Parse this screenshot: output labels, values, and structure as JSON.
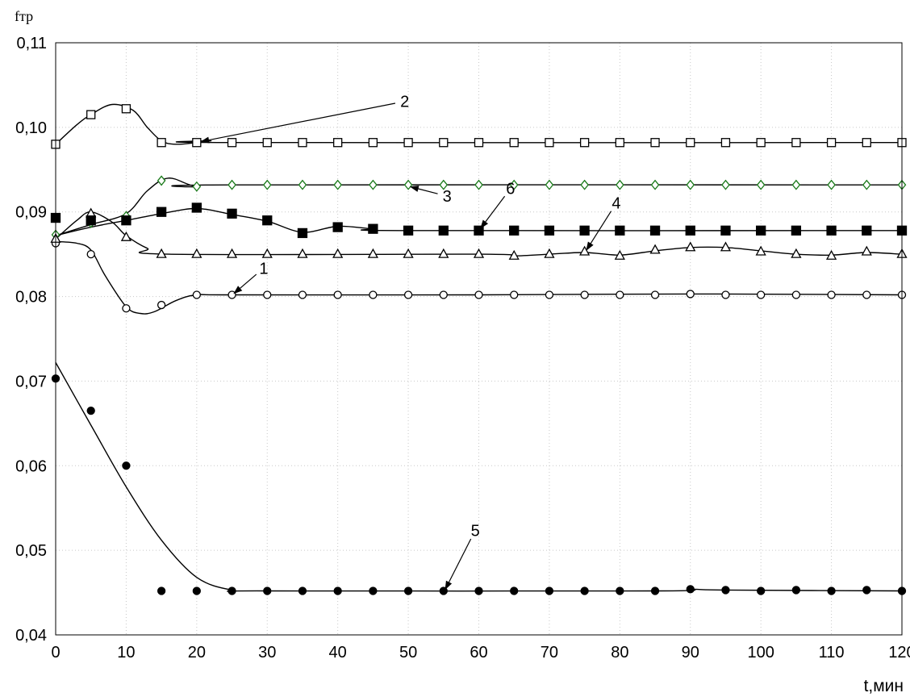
{
  "chart_data": {
    "type": "line",
    "ylabel": "fтр",
    "xlabel": "t,мин",
    "xlim": [
      0,
      120
    ],
    "ylim": [
      0.04,
      0.11
    ],
    "x_ticks": [
      0,
      10,
      20,
      30,
      40,
      50,
      60,
      70,
      80,
      90,
      100,
      110,
      120
    ],
    "y_ticks": [
      0.04,
      0.05,
      0.06,
      0.07,
      0.08,
      0.09,
      0.1,
      0.11
    ],
    "x_tick_labels": [
      "0",
      "10",
      "20",
      "30",
      "40",
      "50",
      "60",
      "70",
      "80",
      "90",
      "100",
      "110",
      "120"
    ],
    "y_tick_labels": [
      "0,04",
      "0,05",
      "0,06",
      "0,07",
      "0,08",
      "0,09",
      "0,10",
      "0,11"
    ],
    "grid": true,
    "x": [
      0,
      5,
      10,
      15,
      20,
      25,
      30,
      35,
      40,
      45,
      50,
      55,
      60,
      65,
      70,
      75,
      80,
      85,
      90,
      95,
      100,
      105,
      110,
      115,
      120
    ],
    "series": [
      {
        "label": "1",
        "marker": "circle-open",
        "color": "#000000",
        "points": [
          0.0863,
          0.085,
          0.0786,
          0.079,
          0.0802,
          0.0802,
          0.0802,
          0.0802,
          0.0802,
          0.0802,
          0.0802,
          0.0802,
          0.0802,
          0.0802,
          0.0802,
          0.0802,
          0.0802,
          0.0802,
          0.0803,
          0.0802,
          0.0802,
          0.0802,
          0.0802,
          0.0802,
          0.0802
        ],
        "curve": [
          [
            0,
            0.0865
          ],
          [
            3,
            0.0863
          ],
          [
            5,
            0.0855
          ],
          [
            7,
            0.0825
          ],
          [
            10,
            0.0788
          ],
          [
            12,
            0.078
          ],
          [
            14,
            0.0782
          ],
          [
            17,
            0.0795
          ],
          [
            20,
            0.0802
          ],
          [
            25,
            0.0802
          ],
          [
            60,
            0.0802
          ],
          [
            90,
            0.0803
          ],
          [
            120,
            0.0802
          ]
        ]
      },
      {
        "label": "2",
        "marker": "square-open",
        "color": "#000000",
        "points": [
          0.098,
          0.1015,
          0.1022,
          0.0982,
          0.0982,
          0.0982,
          0.0982,
          0.0982,
          0.0982,
          0.0982,
          0.0982,
          0.0982,
          0.0982,
          0.0982,
          0.0982,
          0.0982,
          0.0982,
          0.0982,
          0.0982,
          0.0982,
          0.0982,
          0.0982,
          0.0982,
          0.0982,
          0.0982
        ],
        "curve": [
          [
            0,
            0.098
          ],
          [
            3,
            0.1003
          ],
          [
            5,
            0.1015
          ],
          [
            8,
            0.1027
          ],
          [
            11,
            0.102
          ],
          [
            13,
            0.1
          ],
          [
            15,
            0.0984
          ],
          [
            17,
            0.098
          ],
          [
            20,
            0.0982
          ],
          [
            22,
            0.0984
          ],
          [
            25,
            0.0982
          ],
          [
            120,
            0.0982
          ]
        ]
      },
      {
        "label": "3",
        "marker": "diamond-open",
        "color": "#1a7a1a",
        "points": [
          0.0873,
          0.0887,
          0.0895,
          0.0937,
          0.093,
          0.0932,
          0.0932,
          0.0932,
          0.0932,
          0.0932,
          0.0932,
          0.0932,
          0.0932,
          0.0932,
          0.0932,
          0.0932,
          0.0932,
          0.0932,
          0.0932,
          0.0932,
          0.0932,
          0.0932,
          0.0932,
          0.0932,
          0.0932
        ],
        "curve": [
          [
            0,
            0.0872
          ],
          [
            5,
            0.0885
          ],
          [
            10,
            0.0898
          ],
          [
            13,
            0.0925
          ],
          [
            16,
            0.094
          ],
          [
            20,
            0.093
          ],
          [
            25,
            0.0932
          ],
          [
            120,
            0.0932
          ]
        ]
      },
      {
        "label": "4",
        "marker": "triangle-open",
        "color": "#000000",
        "points": [
          0.0868,
          0.0898,
          0.087,
          0.085,
          0.085,
          0.085,
          0.085,
          0.085,
          0.085,
          0.085,
          0.085,
          0.085,
          0.085,
          0.0848,
          0.085,
          0.0853,
          0.0848,
          0.0855,
          0.0858,
          0.0858,
          0.0853,
          0.085,
          0.0848,
          0.0853,
          0.085
        ],
        "curve": [
          [
            0,
            0.0868
          ],
          [
            3,
            0.089
          ],
          [
            5,
            0.09
          ],
          [
            8,
            0.0888
          ],
          [
            10,
            0.0872
          ],
          [
            13,
            0.0857
          ],
          [
            16,
            0.085
          ],
          [
            60,
            0.085
          ],
          [
            65,
            0.0848
          ],
          [
            70,
            0.085
          ],
          [
            75,
            0.0852
          ],
          [
            80,
            0.0849
          ],
          [
            85,
            0.0854
          ],
          [
            90,
            0.0858
          ],
          [
            95,
            0.0858
          ],
          [
            100,
            0.0854
          ],
          [
            105,
            0.085
          ],
          [
            110,
            0.0849
          ],
          [
            115,
            0.0852
          ],
          [
            120,
            0.085
          ]
        ]
      },
      {
        "label": "5",
        "marker": "circle-filled",
        "color": "#000000",
        "points": [
          0.0703,
          0.0665,
          0.06,
          0.0452,
          0.0452,
          0.0452,
          0.0452,
          0.0452,
          0.0452,
          0.0452,
          0.0452,
          0.0452,
          0.0452,
          0.0452,
          0.0452,
          0.0452,
          0.0452,
          0.0452,
          0.0454,
          0.0453,
          0.0452,
          0.0453,
          0.0452,
          0.0453,
          0.0452
        ],
        "curve": [
          [
            0,
            0.0722
          ],
          [
            5,
            0.0648
          ],
          [
            10,
            0.0575
          ],
          [
            15,
            0.0512
          ],
          [
            20,
            0.0468
          ],
          [
            25,
            0.0453
          ],
          [
            30,
            0.0452
          ],
          [
            85,
            0.0452
          ],
          [
            90,
            0.0454
          ],
          [
            95,
            0.0453
          ],
          [
            120,
            0.0452
          ]
        ]
      },
      {
        "label": "6",
        "marker": "square-filled",
        "color": "#000000",
        "points": [
          0.0893,
          0.089,
          0.089,
          0.09,
          0.0905,
          0.0898,
          0.089,
          0.0875,
          0.0882,
          0.088,
          0.0878,
          0.0878,
          0.0878,
          0.0878,
          0.0878,
          0.0878,
          0.0878,
          0.0878,
          0.0878,
          0.0878,
          0.0878,
          0.0878,
          0.0878,
          0.0878,
          0.0878
        ],
        "curve": [
          [
            0,
            0.0872
          ],
          [
            5,
            0.0882
          ],
          [
            10,
            0.089
          ],
          [
            15,
            0.0898
          ],
          [
            20,
            0.0904
          ],
          [
            25,
            0.0897
          ],
          [
            30,
            0.0889
          ],
          [
            35,
            0.0876
          ],
          [
            40,
            0.0883
          ],
          [
            45,
            0.088
          ],
          [
            50,
            0.0878
          ],
          [
            120,
            0.0878
          ]
        ]
      }
    ],
    "annotations": [
      {
        "text": "2",
        "label_at": [
          49.5,
          0.1024
        ],
        "arrow_to": [
          20.5,
          0.0983
        ]
      },
      {
        "text": "3",
        "label_at": [
          55.5,
          0.0912
        ],
        "arrow_to": [
          50.2,
          0.093
        ]
      },
      {
        "text": "6",
        "label_at": [
          64.5,
          0.0921
        ],
        "arrow_to": [
          60.2,
          0.088
        ]
      },
      {
        "text": "4",
        "label_at": [
          79.5,
          0.0904
        ],
        "arrow_to": [
          75.2,
          0.0854
        ]
      },
      {
        "text": "1",
        "label_at": [
          29.5,
          0.0827
        ],
        "arrow_to": [
          25.2,
          0.0803
        ]
      },
      {
        "text": "5",
        "label_at": [
          59.5,
          0.0517
        ],
        "arrow_to": [
          55.2,
          0.0453
        ]
      }
    ]
  }
}
